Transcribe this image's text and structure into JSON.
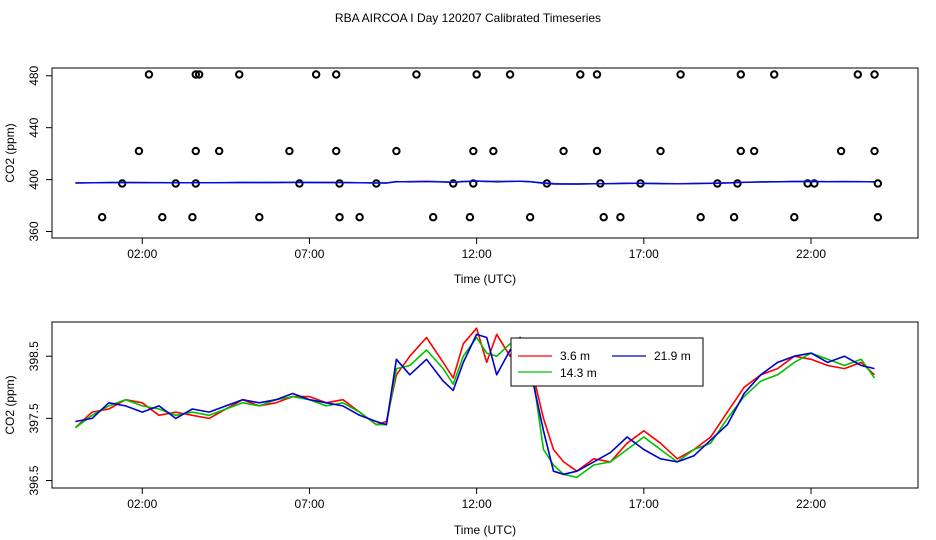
{
  "title": "RBA AIRCOA I  Day 120207  Calibrated Timeseries",
  "chart_data": [
    {
      "type": "scatter",
      "xlabel": "Time (UTC)",
      "ylabel": "CO2 (ppm)",
      "xlim": [
        -0.7,
        25.2
      ],
      "ylim": [
        355,
        486
      ],
      "xticks": [
        2,
        7,
        12,
        17,
        22
      ],
      "xtick_labels": [
        "02:00",
        "07:00",
        "12:00",
        "17:00",
        "22:00"
      ],
      "yticks": [
        360,
        400,
        440,
        480
      ],
      "ytick_labels": [
        "360",
        "400",
        "440",
        "480"
      ],
      "grid": false,
      "colors": {
        "h3_6": "#ff0000",
        "h14_3": "#00c000",
        "h21_9": "#0000ff",
        "flags": "#000000"
      },
      "points_x": [
        0.8,
        1.4,
        1.9,
        2.2,
        2.6,
        3.0,
        3.5,
        3.6,
        3.6,
        3.6,
        3.7,
        4.3,
        4.9,
        5.5,
        6.4,
        6.7,
        7.2,
        7.8,
        7.8,
        7.9,
        7.9,
        8.5,
        9.0,
        9.6,
        10.2,
        10.7,
        11.3,
        11.8,
        11.9,
        11.9,
        12.0,
        12.5,
        13.0,
        13.6,
        14.1,
        14.6,
        15.1,
        15.6,
        15.6,
        15.7,
        15.8,
        16.3,
        16.9,
        17.5,
        18.1,
        18.7,
        19.2,
        19.7,
        19.8,
        19.9,
        19.9,
        20.3,
        20.9,
        21.5,
        21.9,
        22.1,
        22.9,
        23.4,
        23.9,
        23.9,
        24.0,
        24.0
      ],
      "points_y": [
        371,
        397,
        422,
        481,
        371,
        397,
        371,
        397,
        422,
        481,
        481,
        422,
        481,
        371,
        422,
        397,
        481,
        481,
        422,
        371,
        397,
        371,
        397,
        422,
        481,
        371,
        397,
        371,
        397,
        422,
        481,
        422,
        481,
        371,
        397,
        422,
        481,
        481,
        422,
        397,
        371,
        371,
        397,
        422,
        481,
        371,
        397,
        371,
        397,
        481,
        422,
        422,
        481,
        371,
        397,
        397,
        422,
        481,
        481,
        422,
        397,
        371
      ]
    },
    {
      "type": "line",
      "xlabel": "Time (UTC)",
      "ylabel": "CO2 (ppm)",
      "xlim": [
        -0.7,
        25.2
      ],
      "ylim": [
        396.38,
        399.05
      ],
      "xticks": [
        2,
        7,
        12,
        17,
        22
      ],
      "xtick_labels": [
        "02:00",
        "07:00",
        "12:00",
        "17:00",
        "22:00"
      ],
      "yticks": [
        396.5,
        397.5,
        398.5
      ],
      "ytick_labels": [
        "396.5",
        "397.5",
        "398.5"
      ],
      "grid": false,
      "legend": {
        "position": "top-center",
        "labels": [
          "3.6 m",
          "14.3 m",
          "21.9 m"
        ]
      },
      "x": [
        0.0,
        0.5,
        1.0,
        1.5,
        2.0,
        2.5,
        3.0,
        3.5,
        4.0,
        4.5,
        5.0,
        5.5,
        6.0,
        6.5,
        7.0,
        7.5,
        8.0,
        8.5,
        9.0,
        9.3,
        9.6,
        10.0,
        10.5,
        11.0,
        11.3,
        11.6,
        12.0,
        12.3,
        12.6,
        13.0,
        13.3,
        13.6,
        14.0,
        14.3,
        14.6,
        15.0,
        15.5,
        16.0,
        16.5,
        17.0,
        17.5,
        18.0,
        18.5,
        19.0,
        19.5,
        20.0,
        20.5,
        21.0,
        21.5,
        22.0,
        22.5,
        23.0,
        23.5,
        23.9
      ],
      "series": [
        {
          "name": "3.6 m",
          "color": "#ff0000",
          "values": [
            397.35,
            397.6,
            397.65,
            397.8,
            397.75,
            397.55,
            397.6,
            397.55,
            397.5,
            397.65,
            397.8,
            397.7,
            397.75,
            397.85,
            397.85,
            397.75,
            397.8,
            397.6,
            397.4,
            397.45,
            398.2,
            398.5,
            398.8,
            398.4,
            398.15,
            398.7,
            398.95,
            398.4,
            398.85,
            398.5,
            398.8,
            398.4,
            397.5,
            397.0,
            396.8,
            396.65,
            396.85,
            396.8,
            397.1,
            397.3,
            397.1,
            396.85,
            397.0,
            397.2,
            397.6,
            398.0,
            398.2,
            398.3,
            398.5,
            398.45,
            398.35,
            398.3,
            398.4,
            398.2
          ]
        },
        {
          "name": "14.3 m",
          "color": "#00c000",
          "values": [
            397.35,
            397.55,
            397.7,
            397.8,
            397.7,
            397.65,
            397.55,
            397.6,
            397.55,
            397.65,
            397.75,
            397.7,
            397.8,
            397.85,
            397.8,
            397.7,
            397.75,
            397.6,
            397.4,
            397.4,
            398.3,
            398.35,
            398.6,
            398.3,
            398.05,
            398.5,
            398.8,
            398.55,
            398.5,
            398.7,
            398.65,
            398.5,
            397.0,
            396.75,
            396.6,
            396.55,
            396.75,
            396.8,
            397.0,
            397.2,
            397.0,
            396.8,
            397.0,
            397.1,
            397.5,
            397.85,
            398.1,
            398.2,
            398.4,
            398.55,
            398.45,
            398.35,
            398.45,
            398.15
          ]
        },
        {
          "name": "21.9 m",
          "color": "#0000cc",
          "values": [
            397.45,
            397.5,
            397.75,
            397.7,
            397.6,
            397.7,
            397.5,
            397.65,
            397.6,
            397.7,
            397.8,
            397.75,
            397.8,
            397.9,
            397.8,
            397.75,
            397.7,
            397.55,
            397.45,
            397.4,
            398.45,
            398.2,
            398.45,
            398.1,
            397.95,
            398.4,
            398.85,
            398.8,
            398.2,
            398.6,
            398.8,
            398.3,
            397.3,
            396.65,
            396.6,
            396.65,
            396.8,
            396.95,
            397.2,
            397.0,
            396.85,
            396.8,
            396.9,
            397.15,
            397.4,
            397.9,
            398.2,
            398.4,
            398.5,
            398.55,
            398.4,
            398.5,
            398.35,
            398.3
          ]
        }
      ]
    }
  ]
}
